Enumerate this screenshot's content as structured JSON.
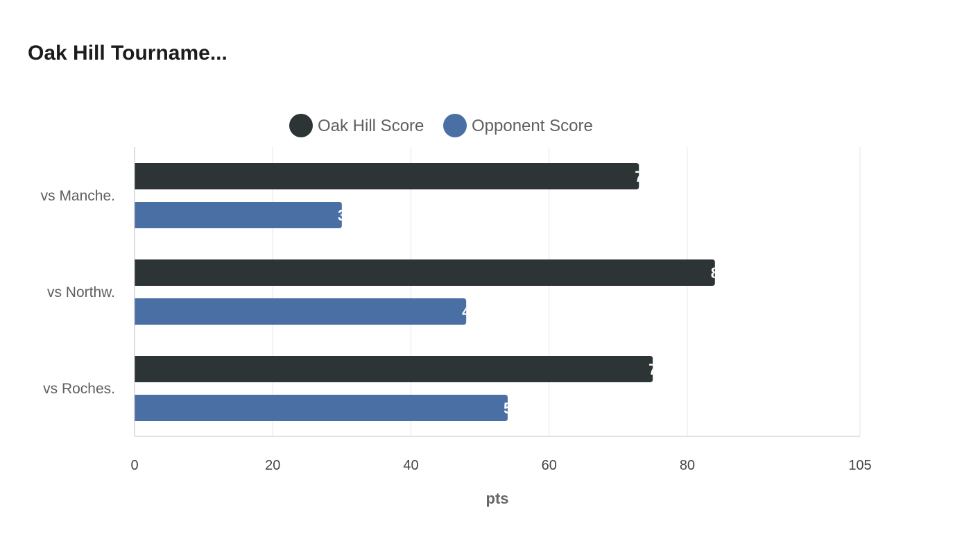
{
  "chart_data": {
    "type": "bar",
    "orientation": "horizontal",
    "title": "Oak Hill Tourname...",
    "categories": [
      "vs Manche.",
      "vs Northw.",
      "vs Roches."
    ],
    "series": [
      {
        "name": "Oak Hill Score",
        "color": "#2d3436",
        "values": [
          73,
          84,
          75
        ]
      },
      {
        "name": "Opponent Score",
        "color": "#4a6fa5",
        "values": [
          30,
          48,
          54
        ]
      }
    ],
    "xlabel": "pts",
    "ylabel": "",
    "xlim": [
      0,
      105
    ],
    "xticks": [
      0,
      20,
      40,
      60,
      80,
      105
    ],
    "xtick_labels": [
      "0",
      "20",
      "40",
      "60",
      "80",
      "105"
    ],
    "grid": true,
    "legend_position": "top-center",
    "data_labels": true
  }
}
